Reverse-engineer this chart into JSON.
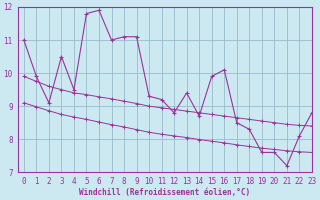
{
  "xlabel": "Windchill (Refroidissement éolien,°C)",
  "background_color": "#cce8f0",
  "line_color": "#993399",
  "grid_color": "#99bbcc",
  "border_color": "#993399",
  "x_data": [
    0,
    1,
    2,
    3,
    4,
    5,
    6,
    7,
    8,
    9,
    10,
    11,
    12,
    13,
    14,
    15,
    16,
    17,
    18,
    19,
    20,
    21,
    22,
    23
  ],
  "y_main": [
    11.0,
    9.9,
    9.1,
    10.5,
    9.5,
    11.8,
    11.9,
    11.0,
    11.1,
    11.1,
    9.3,
    9.2,
    8.8,
    9.4,
    8.7,
    9.9,
    10.1,
    8.5,
    8.3,
    7.6,
    7.6,
    7.2,
    8.1,
    8.8
  ],
  "y_upper": [
    9.9,
    9.75,
    9.6,
    9.5,
    9.4,
    9.35,
    9.28,
    9.22,
    9.15,
    9.08,
    9.0,
    8.95,
    8.9,
    8.85,
    8.8,
    8.75,
    8.7,
    8.65,
    8.6,
    8.55,
    8.5,
    8.45,
    8.42,
    8.4
  ],
  "y_lower": [
    9.1,
    8.98,
    8.86,
    8.75,
    8.67,
    8.6,
    8.52,
    8.44,
    8.37,
    8.29,
    8.21,
    8.15,
    8.1,
    8.05,
    7.99,
    7.94,
    7.89,
    7.83,
    7.78,
    7.73,
    7.69,
    7.65,
    7.62,
    7.6
  ],
  "ylim": [
    7,
    12
  ],
  "xlim": [
    -0.5,
    23
  ],
  "yticks": [
    7,
    8,
    9,
    10,
    11,
    12
  ],
  "xticks": [
    0,
    1,
    2,
    3,
    4,
    5,
    6,
    7,
    8,
    9,
    10,
    11,
    12,
    13,
    14,
    15,
    16,
    17,
    18,
    19,
    20,
    21,
    22,
    23
  ]
}
